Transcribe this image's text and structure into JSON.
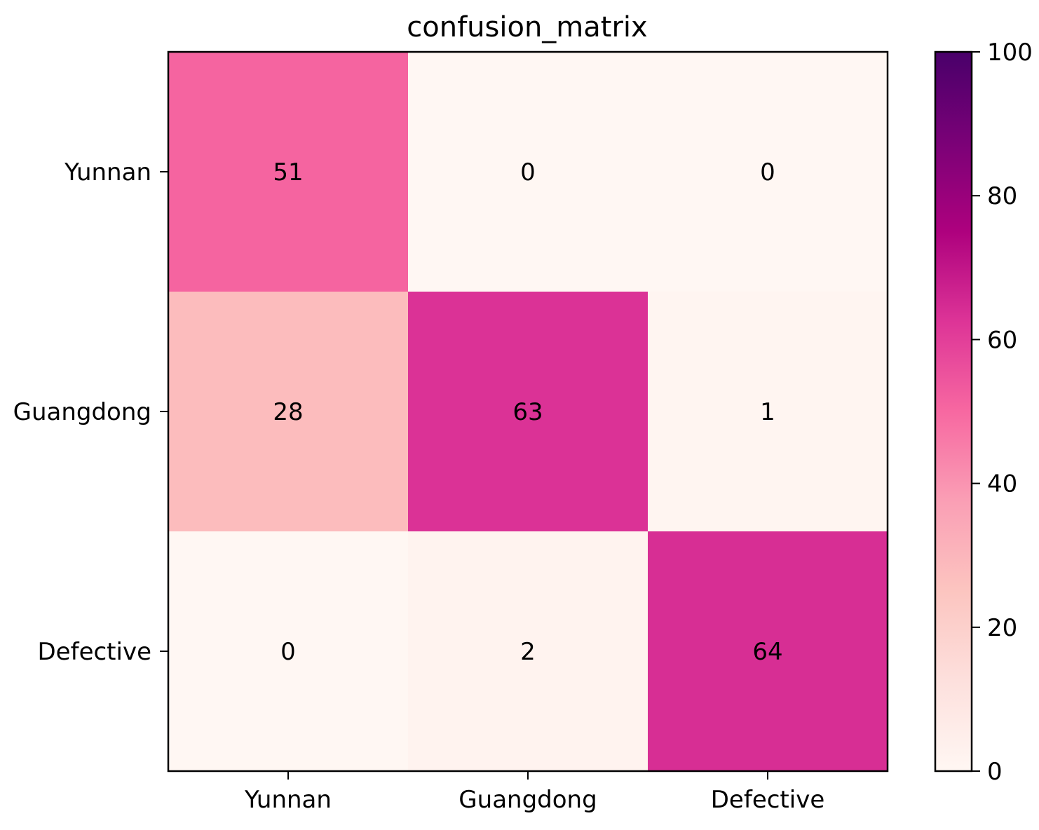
{
  "chart_data": {
    "type": "heatmap",
    "title": "confusion_matrix",
    "xlabel": "",
    "ylabel": "",
    "x_categories": [
      "Yunnan",
      "Guangdong",
      "Defective"
    ],
    "y_categories": [
      "Yunnan",
      "Guangdong",
      "Defective"
    ],
    "values": [
      [
        51,
        0,
        0
      ],
      [
        28,
        63,
        1
      ],
      [
        0,
        2,
        64
      ]
    ],
    "colormap": "RdPu",
    "colorbar": {
      "range": [
        0,
        100
      ],
      "ticks": [
        "0",
        "20",
        "40",
        "60",
        "80",
        "100"
      ],
      "colors": [
        "#fff7f3",
        "#fde0dd",
        "#fcc5c0",
        "#fa9fb5",
        "#f768a1",
        "#dd3497",
        "#ae017e",
        "#7a0177",
        "#49006a"
      ]
    },
    "grid": false
  }
}
